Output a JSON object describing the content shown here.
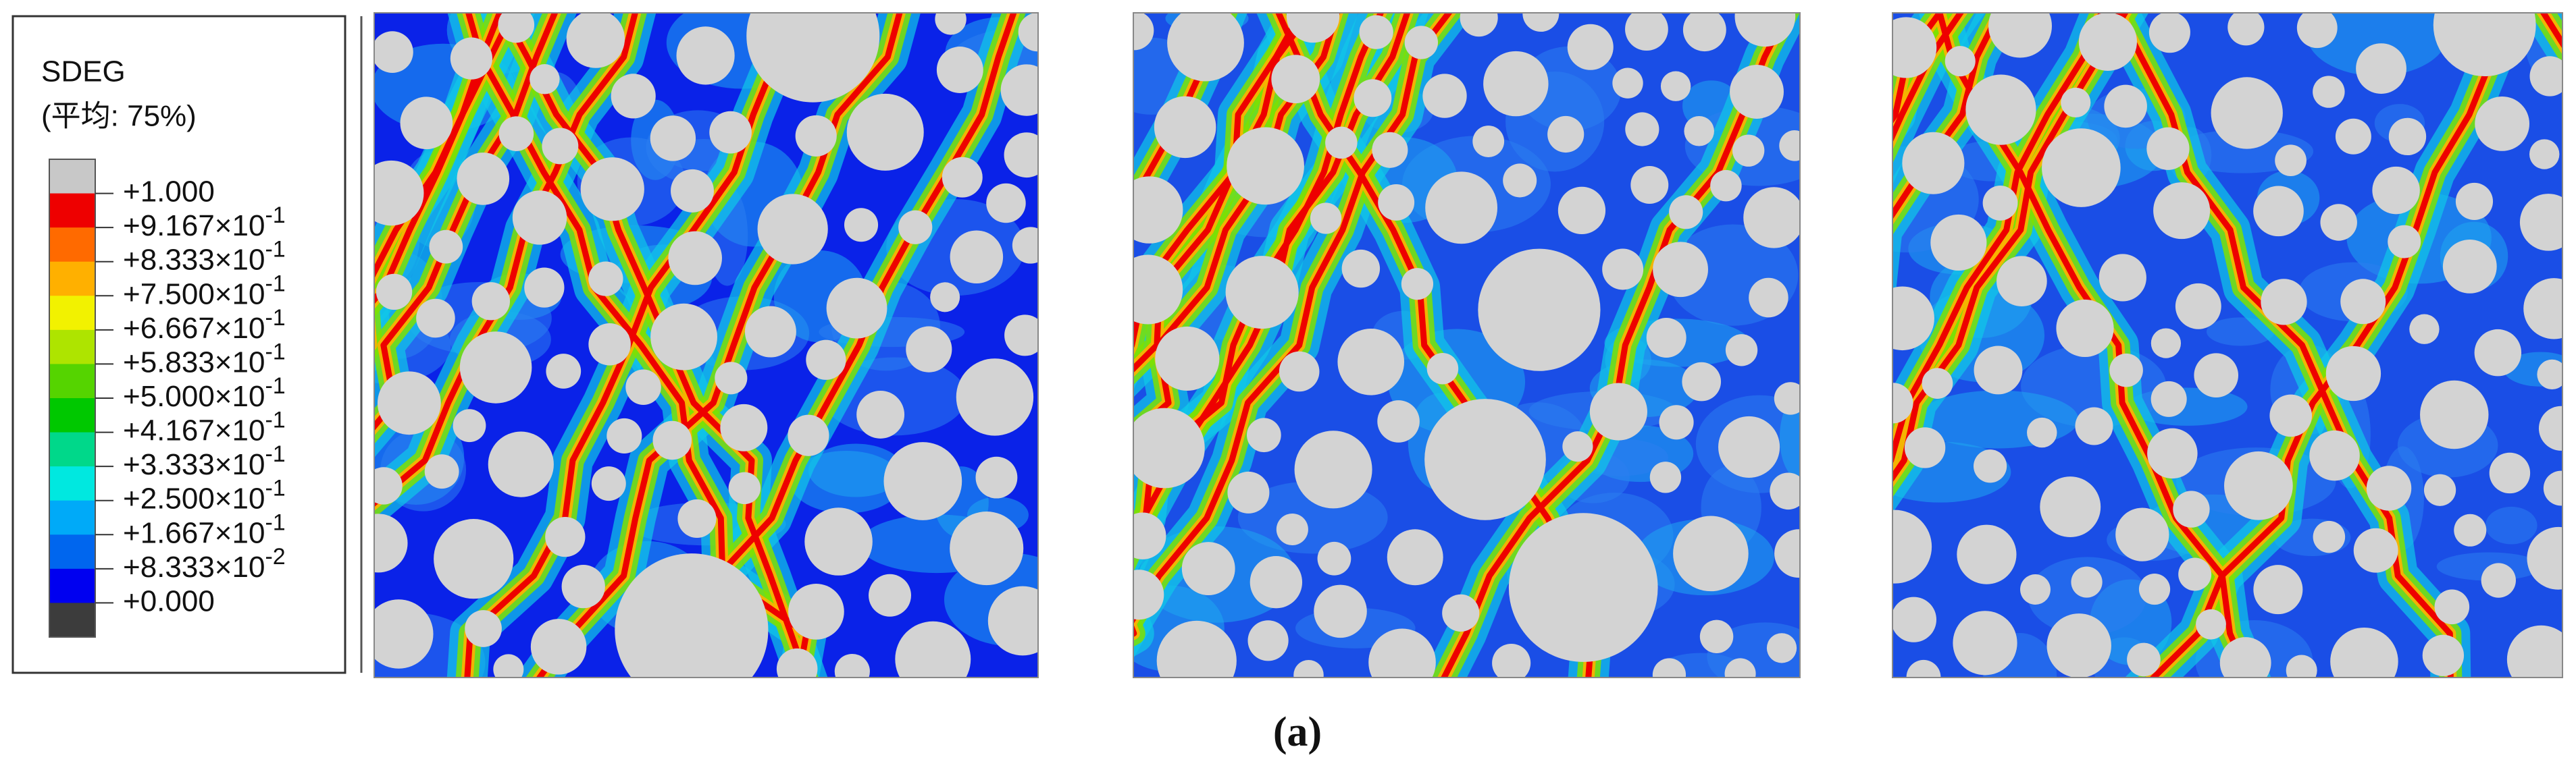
{
  "legend": {
    "title": "SDEG",
    "subtitle": "(平均: 75%)",
    "colors": [
      "#c8c8c8",
      "#ee0000",
      "#ff6a00",
      "#ffb000",
      "#f2f200",
      "#aee400",
      "#55d400",
      "#00c800",
      "#00d88a",
      "#00e8e0",
      "#00aaf8",
      "#0066ee",
      "#0000f0",
      "#3c3c3c"
    ],
    "labels": [
      {
        "base": "+1.000"
      },
      {
        "base": "+9.167×10",
        "exponent": "-1"
      },
      {
        "base": "+8.333×10",
        "exponent": "-1"
      },
      {
        "base": "+7.500×10",
        "exponent": "-1"
      },
      {
        "base": "+6.667×10",
        "exponent": "-1"
      },
      {
        "base": "+5.833×10",
        "exponent": "-1"
      },
      {
        "base": "+5.000×10",
        "exponent": "-1"
      },
      {
        "base": "+4.167×10",
        "exponent": "-1"
      },
      {
        "base": "+3.333×10",
        "exponent": "-1"
      },
      {
        "base": "+2.500×10",
        "exponent": "-1"
      },
      {
        "base": "+1.667×10",
        "exponent": "-1"
      },
      {
        "base": "+8.333×10",
        "exponent": "-2"
      },
      {
        "base": "+0.000"
      }
    ]
  },
  "caption": "(a)"
}
